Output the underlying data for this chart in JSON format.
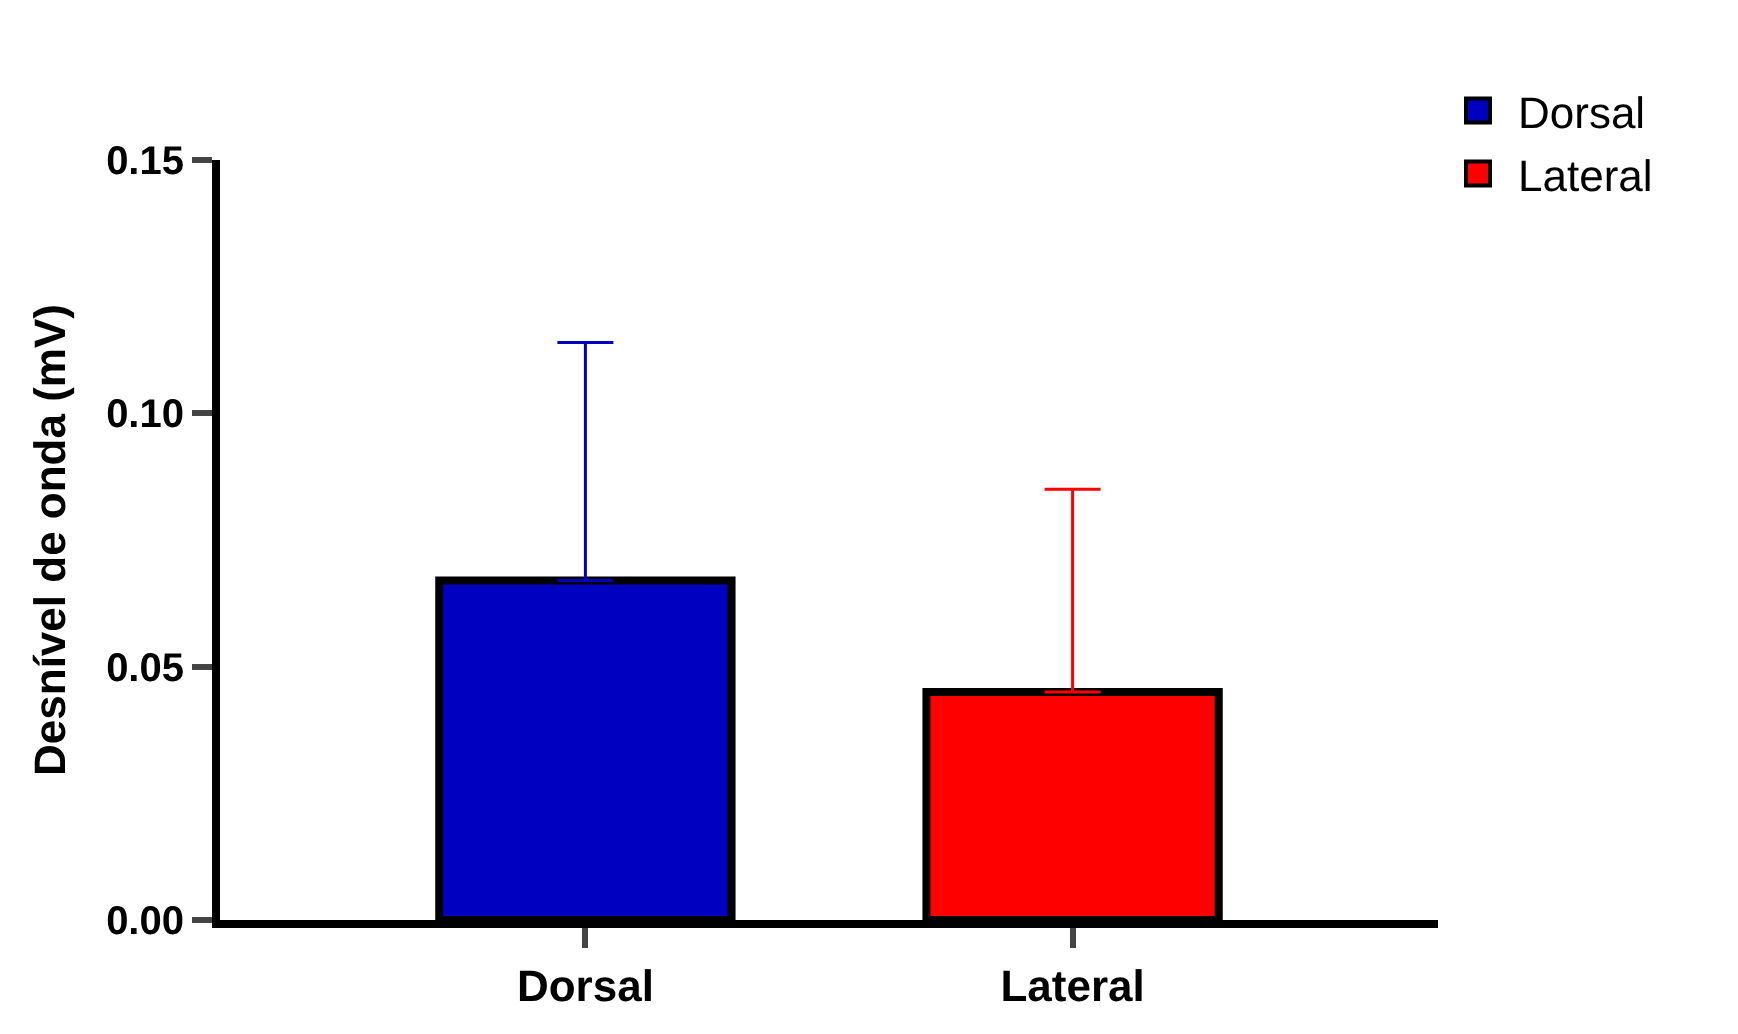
{
  "chart_data": {
    "type": "bar",
    "ylabel": "Desnível de onda (mV)",
    "categories": [
      "Dorsal",
      "Lateral"
    ],
    "series": [
      {
        "name": "Dorsal",
        "color": "#0000c0",
        "values": [
          0.067,
          null
        ],
        "errors": [
          [
            0.067,
            0.114
          ],
          null
        ]
      },
      {
        "name": "Lateral",
        "color": "#ff0000",
        "values": [
          null,
          0.045
        ],
        "errors": [
          null,
          [
            0.045,
            0.085
          ]
        ]
      }
    ],
    "ylim": [
      0,
      0.15
    ],
    "yticks": [
      {
        "value": 0,
        "label": "0.00"
      },
      {
        "value": 0.05,
        "label": "0.05"
      },
      {
        "value": 0.1,
        "label": "0.10"
      },
      {
        "value": 0.15,
        "label": "0.15"
      }
    ],
    "legend": "top right"
  }
}
